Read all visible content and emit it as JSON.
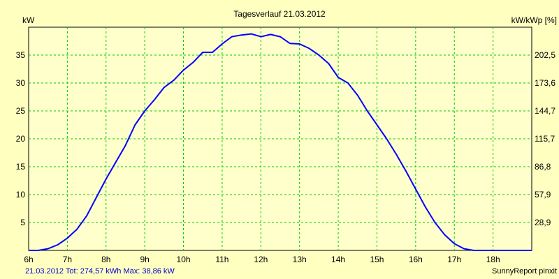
{
  "chart_data": {
    "type": "line",
    "title": "Tagesverlauf 21.03.2012",
    "ylabel_left": "kW",
    "ylabel_right": "kW/kWp [%]",
    "x_ticks": [
      "6h",
      "7h",
      "8h",
      "9h",
      "10h",
      "11h",
      "12h",
      "13h",
      "14h",
      "15h",
      "16h",
      "17h",
      "18h"
    ],
    "y_ticks_left": [
      "5",
      "10",
      "15",
      "20",
      "25",
      "30",
      "35"
    ],
    "y_ticks_right": [
      "28,9",
      "57,9",
      "86,8",
      "115,7",
      "144,7",
      "173,6",
      "202,5"
    ],
    "xlim": [
      6,
      19
    ],
    "ylim": [
      0,
      40
    ],
    "grid": true,
    "series": [
      {
        "color": "#0000ff",
        "x": [
          6.0,
          6.25,
          6.5,
          6.75,
          7.0,
          7.25,
          7.5,
          7.75,
          8.0,
          8.25,
          8.5,
          8.75,
          9.0,
          9.25,
          9.5,
          9.75,
          10.0,
          10.25,
          10.5,
          10.75,
          11.0,
          11.25,
          11.5,
          11.75,
          12.0,
          12.25,
          12.5,
          12.75,
          13.0,
          13.25,
          13.5,
          13.75,
          14.0,
          14.25,
          14.5,
          14.75,
          15.0,
          15.25,
          15.5,
          15.75,
          16.0,
          16.25,
          16.5,
          16.75,
          17.0,
          17.25,
          17.5,
          17.75,
          18.0,
          18.25,
          18.5,
          18.75,
          19.0
        ],
        "y": [
          0.0,
          0.0,
          0.3,
          1.0,
          2.2,
          3.8,
          6.2,
          9.5,
          12.8,
          15.8,
          18.8,
          22.5,
          25.0,
          27.0,
          29.2,
          30.5,
          32.3,
          33.7,
          35.5,
          35.5,
          37.0,
          38.3,
          38.6,
          38.8,
          38.3,
          38.7,
          38.3,
          37.1,
          37.0,
          36.2,
          35.0,
          33.5,
          31.0,
          30.0,
          27.8,
          25.0,
          22.5,
          20.0,
          17.2,
          14.2,
          11.0,
          7.8,
          5.0,
          2.8,
          1.2,
          0.3,
          0.0,
          0.0,
          0.0,
          0.0,
          0.0,
          0.0,
          0.0
        ]
      }
    ]
  },
  "footer": {
    "summary": "21.03.2012 Tot: 274,57 kWh Max: 38,86 kW",
    "credit": "SunnyReport pinxit"
  },
  "colors": {
    "background": "#ffffc0",
    "plot_background": "#ffffcc",
    "grid": "#00cc00",
    "line": "#0000ff"
  }
}
